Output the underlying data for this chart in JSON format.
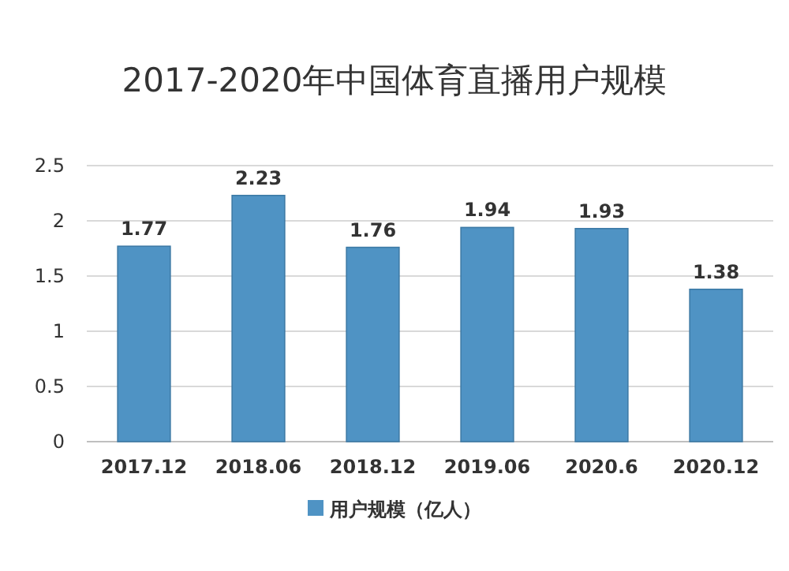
{
  "chart_data": {
    "type": "bar",
    "title": "2017-2020年中国体育直播用户规模",
    "categories": [
      "2017.12",
      "2018.06",
      "2018.12",
      "2019.06",
      "2020.6",
      "2020.12"
    ],
    "series": [
      {
        "name": "用户规模（亿人）",
        "color": "#4f93c4",
        "values": [
          1.77,
          2.23,
          1.76,
          1.94,
          1.93,
          1.38
        ]
      }
    ],
    "ylim": [
      0,
      2.5
    ],
    "yticks": [
      0,
      0.5,
      1,
      1.5,
      2,
      2.5
    ],
    "grid": "y",
    "legend": "bottom",
    "data_labels": true
  }
}
